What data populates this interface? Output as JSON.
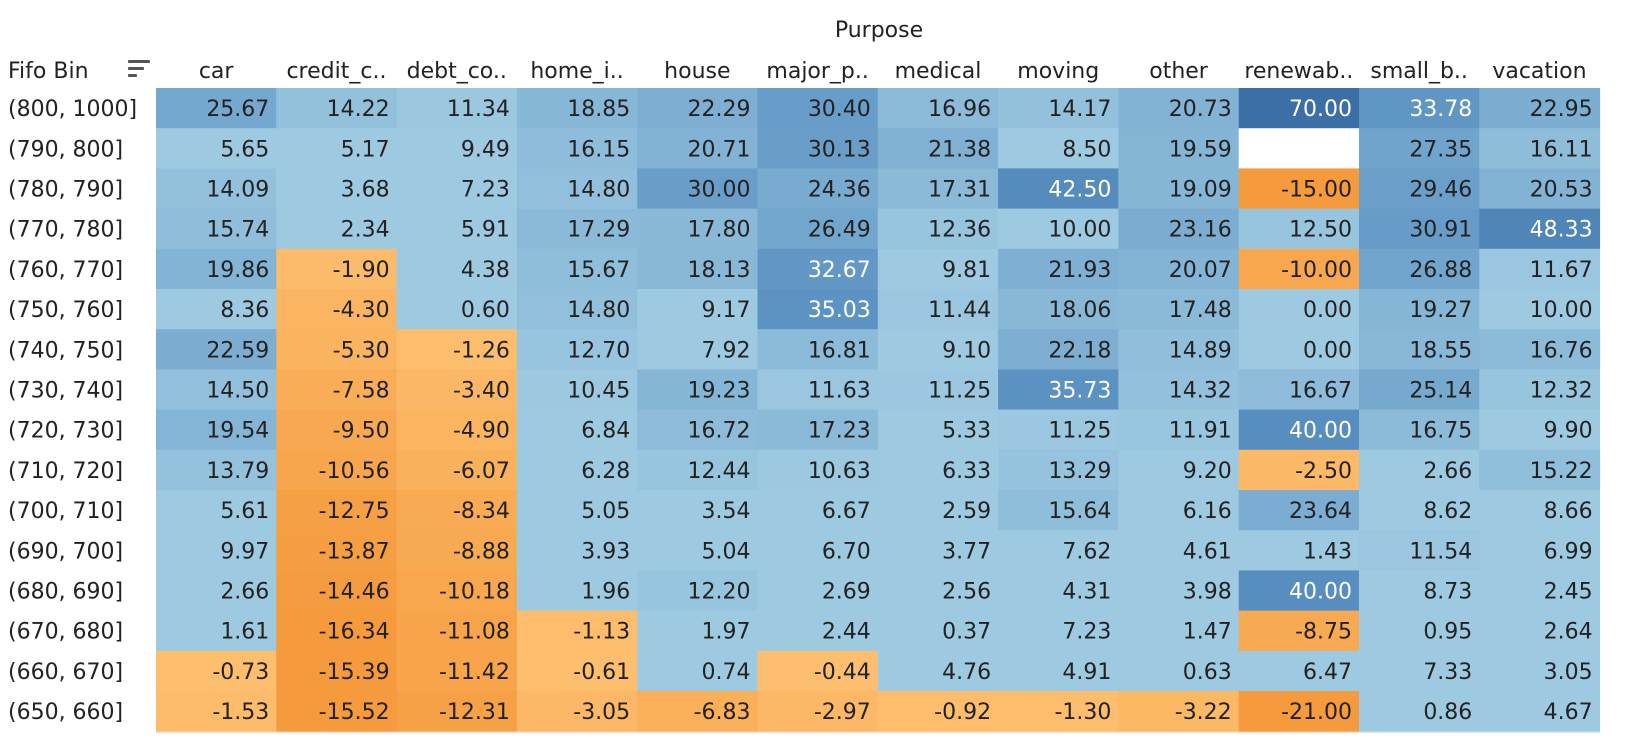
{
  "chart_data": {
    "type": "heatmap",
    "title": "Purpose",
    "row_header": "Fifo Bin",
    "columns": [
      "car",
      "credit_c..",
      "debt_co..",
      "home_i..",
      "house",
      "major_p..",
      "medical",
      "moving",
      "other",
      "renewab..",
      "small_b..",
      "vacation"
    ],
    "rows": [
      "(800, 1000]",
      "(790, 800]",
      "(780, 790]",
      "(770, 780]",
      "(760, 770]",
      "(750, 760]",
      "(740, 750]",
      "(730, 740]",
      "(720, 730]",
      "(710, 720]",
      "(700, 710]",
      "(690, 700]",
      "(680, 690]",
      "(670, 680]",
      "(660, 670]",
      "(650, 660]"
    ],
    "values": [
      [
        25.67,
        14.22,
        11.34,
        18.85,
        22.29,
        30.4,
        16.96,
        14.17,
        20.73,
        70.0,
        33.78,
        22.95
      ],
      [
        5.65,
        5.17,
        9.49,
        16.15,
        20.71,
        30.13,
        21.38,
        8.5,
        19.59,
        null,
        27.35,
        16.11
      ],
      [
        14.09,
        3.68,
        7.23,
        14.8,
        30.0,
        24.36,
        17.31,
        42.5,
        19.09,
        -15.0,
        29.46,
        20.53
      ],
      [
        15.74,
        2.34,
        5.91,
        17.29,
        17.8,
        26.49,
        12.36,
        10.0,
        23.16,
        12.5,
        30.91,
        48.33
      ],
      [
        19.86,
        -1.9,
        4.38,
        15.67,
        18.13,
        32.67,
        9.81,
        21.93,
        20.07,
        -10.0,
        26.88,
        11.67
      ],
      [
        8.36,
        -4.3,
        0.6,
        14.8,
        9.17,
        35.03,
        11.44,
        18.06,
        17.48,
        0.0,
        19.27,
        10.0
      ],
      [
        22.59,
        -5.3,
        -1.26,
        12.7,
        7.92,
        16.81,
        9.1,
        22.18,
        14.89,
        0.0,
        18.55,
        16.76
      ],
      [
        14.5,
        -7.58,
        -3.4,
        10.45,
        19.23,
        11.63,
        11.25,
        35.73,
        14.32,
        16.67,
        25.14,
        12.32
      ],
      [
        19.54,
        -9.5,
        -4.9,
        6.84,
        16.72,
        17.23,
        5.33,
        11.25,
        11.91,
        40.0,
        16.75,
        9.9
      ],
      [
        13.79,
        -10.56,
        -6.07,
        6.28,
        12.44,
        10.63,
        6.33,
        13.29,
        9.2,
        -2.5,
        2.66,
        15.22
      ],
      [
        5.61,
        -12.75,
        -8.34,
        5.05,
        3.54,
        6.67,
        2.59,
        15.64,
        6.16,
        23.64,
        8.62,
        8.66
      ],
      [
        9.97,
        -13.87,
        -8.88,
        3.93,
        5.04,
        6.7,
        3.77,
        7.62,
        4.61,
        1.43,
        11.54,
        6.99
      ],
      [
        2.66,
        -14.46,
        -10.18,
        1.96,
        12.2,
        2.69,
        2.56,
        4.31,
        3.98,
        40.0,
        8.73,
        2.45
      ],
      [
        1.61,
        -16.34,
        -11.08,
        -1.13,
        1.97,
        2.44,
        0.37,
        7.23,
        1.47,
        -8.75,
        0.95,
        2.64
      ],
      [
        -0.73,
        -15.39,
        -11.42,
        -0.61,
        0.74,
        -0.44,
        4.76,
        4.91,
        0.63,
        6.47,
        7.33,
        3.05
      ],
      [
        -1.53,
        -15.52,
        -12.31,
        -3.05,
        -6.83,
        -2.97,
        -0.92,
        -1.3,
        -3.22,
        -21.0,
        0.86,
        4.67
      ]
    ],
    "value_format": "2 decimals",
    "color_scale": {
      "type": "diverging",
      "negative_colors": [
        "#fdbf6f",
        "#f59a3d"
      ],
      "positive_colors": [
        "#9ecae1",
        "#5d93c3",
        "#3c6fa6"
      ],
      "missing_color": "#ffffff"
    },
    "sort_icon": "sort-descending-icon"
  }
}
